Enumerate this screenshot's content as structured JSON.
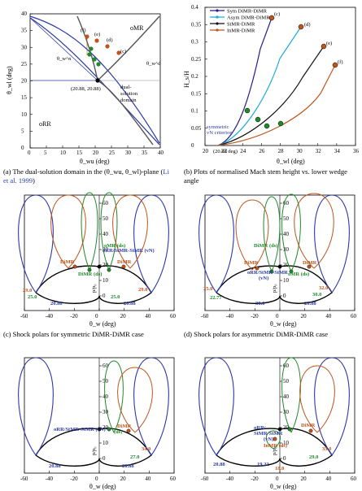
{
  "panel_a": {
    "y_ticks": [
      "0",
      "5",
      "10",
      "15",
      "20",
      "25",
      "30",
      "35",
      "40"
    ],
    "x_ticks": [
      "0",
      "5",
      "10",
      "15",
      "20",
      "25",
      "30",
      "35",
      "40"
    ],
    "xlabel": "θ_wu (deg)",
    "ylabel": "θ_wl (deg)",
    "region_omr": "oMR",
    "region_orr": "oRR",
    "point_label": "(20.88, 20.88)",
    "dual_label": [
      "dual-",
      "solution",
      "domain"
    ],
    "theta_n": "θ_w^n",
    "theta_d": "θ_w^d",
    "case_labels": [
      "(f)",
      "(e)",
      "(d)",
      "(c)"
    ]
  },
  "panel_b": {
    "legend": [
      {
        "label": "Sym DiMR-DiMR",
        "color": "#2b1a8c"
      },
      {
        "label": "Asym DiMR-DiMR",
        "color": "#1eaad6"
      },
      {
        "label": "StMR-DiMR",
        "color": "#111111"
      },
      {
        "label": "InMR-DiMR",
        "color": "#c0541c"
      }
    ],
    "y_ticks": [
      "0",
      "0.05",
      "0.1",
      "0.15",
      "0.2",
      "0.25",
      "0.3",
      "0.35",
      "0.4"
    ],
    "x_ticks": [
      "20",
      "22",
      "24",
      "26",
      "28",
      "30",
      "32",
      "34",
      "36"
    ],
    "ylabel": "H_s/H",
    "xlabel": "θ_wl (deg)",
    "note_start": "(20.88 deg)",
    "note_sym": [
      "symmetric",
      "vN criterion"
    ],
    "case_labels": [
      "(c)",
      "(d)",
      "(e)",
      "(f)"
    ]
  },
  "caption_a": {
    "text": "(a) The dual-solution domain in the (θ_wu, θ_wl)-plane (",
    "cite": "Li et al. 1999",
    ")": ")"
  },
  "caption_b": {
    "text": "(b) Plots of normalised Mach stem height vs. lower wedge angle"
  },
  "caption_c": {
    "text": "(c) Shock polars for symmetric DiMR-DiMR case"
  },
  "caption_d": {
    "text": "(d) Shock polars for asymmetric DiMR-DiMR case"
  },
  "polar_axes": {
    "x_ticks": [
      "-60",
      "-40",
      "-20",
      "0",
      "20",
      "40",
      "60"
    ],
    "y_ticks": [
      "0",
      "10",
      "20",
      "30",
      "40",
      "50",
      "60"
    ],
    "xlabel": "θ_w (deg)",
    "ylabel": "p/p₀"
  },
  "panel_c": {
    "labels": {
      "dimr_l": "DiMR",
      "dimr_r": "DiMR",
      "dimr_ds": "DiMR (ds)",
      "omr_ds": "oMR (ds)",
      "orr_vn": "oRR/StMR-StMR (vN)",
      "v1": "29.0",
      "v2": "29.0",
      "v3": "25.0",
      "v4": "25.0",
      "v5": "20.88",
      "v6": "20.88"
    }
  },
  "panel_d": {
    "labels": {
      "dimr_l": "DiMR",
      "dimr_r": "DiMR",
      "dimr_ds": "DiMR (ds)",
      "omr_ds": "oMR (ds)",
      "orr": "oRR/StMR-StMR",
      "vn": "(vN)",
      "v1": "25.0",
      "v2": "32.0",
      "v3": "22.77",
      "v4": "30.0",
      "v5": "20.88",
      "v6": "30.0"
    }
  },
  "panel_e": {
    "labels": {
      "orr": "oRR/StMR-StMR (vN)",
      "dimr_l": "DiMR",
      "dimr_ds": "(ds)",
      "v1": "34.0",
      "v2": "27.0",
      "v3": "20.88",
      "v4": "20.88"
    }
  },
  "panel_f": {
    "labels": {
      "orr": "oRR/",
      "stmr": "StMR-StMR",
      "vn": "(vN)",
      "inmr": "InMR (ds)",
      "dimr": "DiMR",
      "v1": "35.0",
      "v2": "29.0",
      "v3": "20.88",
      "v4": "19.22",
      "v5": "18.0"
    }
  }
}
